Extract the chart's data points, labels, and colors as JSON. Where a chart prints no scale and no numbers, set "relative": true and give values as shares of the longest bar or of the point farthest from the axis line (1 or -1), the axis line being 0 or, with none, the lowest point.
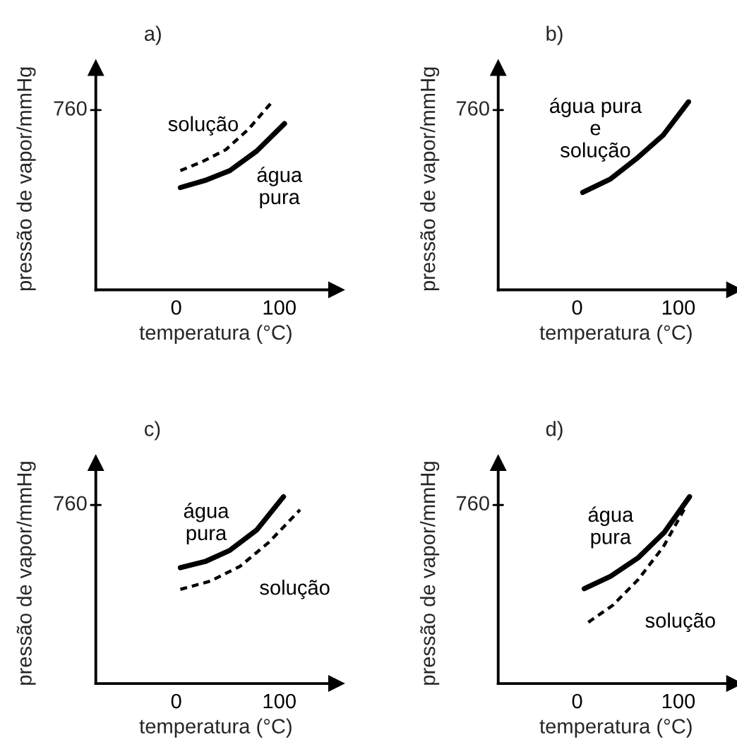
{
  "chart_data": [
    {
      "type": "line",
      "title": "a)",
      "xlabel": "temperatura (°C)",
      "ylabel": "pressão de vapor/mmHg",
      "xlim": [
        -78,
        155
      ],
      "xticks": [
        0,
        100
      ],
      "relative": true,
      "annotations": [
        "760"
      ],
      "series": [
        {
          "name": "solução",
          "color": "#000000",
          "line_style": "dashed",
          "x": [
            4,
            25,
            48,
            70,
            93
          ],
          "values": [
            0.634,
            0.681,
            0.745,
            0.854,
            1
          ]
        },
        {
          "name": "água\npura",
          "color": "#000000",
          "line_style": "solid",
          "x": [
            4,
            28,
            52,
            78,
            105
          ],
          "values": [
            0.544,
            0.582,
            0.634,
            0.738,
            0.884
          ]
        }
      ]
    },
    {
      "type": "line",
      "title": "b)",
      "xlabel": "temperatura (°C)",
      "ylabel": "pressão de vapor/mmHg",
      "xlim": [
        -78,
        155
      ],
      "xticks": [
        0,
        100
      ],
      "relative": true,
      "annotations": [
        "760"
      ],
      "series": [
        {
          "name": "água pura\ne\nsolução",
          "color": "#000000",
          "line_style": "solid",
          "x": [
            5.5,
            33,
            60,
            85,
            110
          ],
          "values": [
            0.518,
            0.59,
            0.704,
            0.823,
            1
          ]
        }
      ]
    },
    {
      "type": "line",
      "title": "c)",
      "xlabel": "temperatura (°C)",
      "ylabel": "pressão de vapor/mmHg",
      "xlim": [
        -78,
        155
      ],
      "xticks": [
        0,
        100
      ],
      "relative": true,
      "annotations": [
        "760"
      ],
      "series": [
        {
          "name": "água\npura",
          "color": "#000000",
          "line_style": "solid",
          "x": [
            4,
            28,
            52,
            78,
            104
          ],
          "values": [
            0.62,
            0.653,
            0.713,
            0.822,
            1
          ]
        },
        {
          "name": "solução",
          "color": "#000000",
          "line_style": "dashed",
          "x": [
            4,
            33,
            62,
            90,
            120
          ],
          "values": [
            0.504,
            0.548,
            0.628,
            0.757,
            0.93
          ]
        }
      ]
    },
    {
      "type": "line",
      "title": "d)",
      "xlabel": "temperatura (°C)",
      "ylabel": "pressão de vapor/mmHg",
      "xlim": [
        -78,
        155
      ],
      "xticks": [
        0,
        100
      ],
      "relative": true,
      "annotations": [
        "760"
      ],
      "series": [
        {
          "name": "água\npura",
          "color": "#000000",
          "line_style": "solid",
          "x": [
            7,
            33,
            60,
            86,
            111
          ],
          "values": [
            0.508,
            0.574,
            0.672,
            0.809,
            1
          ]
        },
        {
          "name": "solução",
          "color": "#000000",
          "line_style": "dashed",
          "x": [
            11,
            35,
            60,
            85,
            107
          ],
          "values": [
            0.328,
            0.418,
            0.555,
            0.731,
            0.945
          ]
        }
      ]
    }
  ]
}
